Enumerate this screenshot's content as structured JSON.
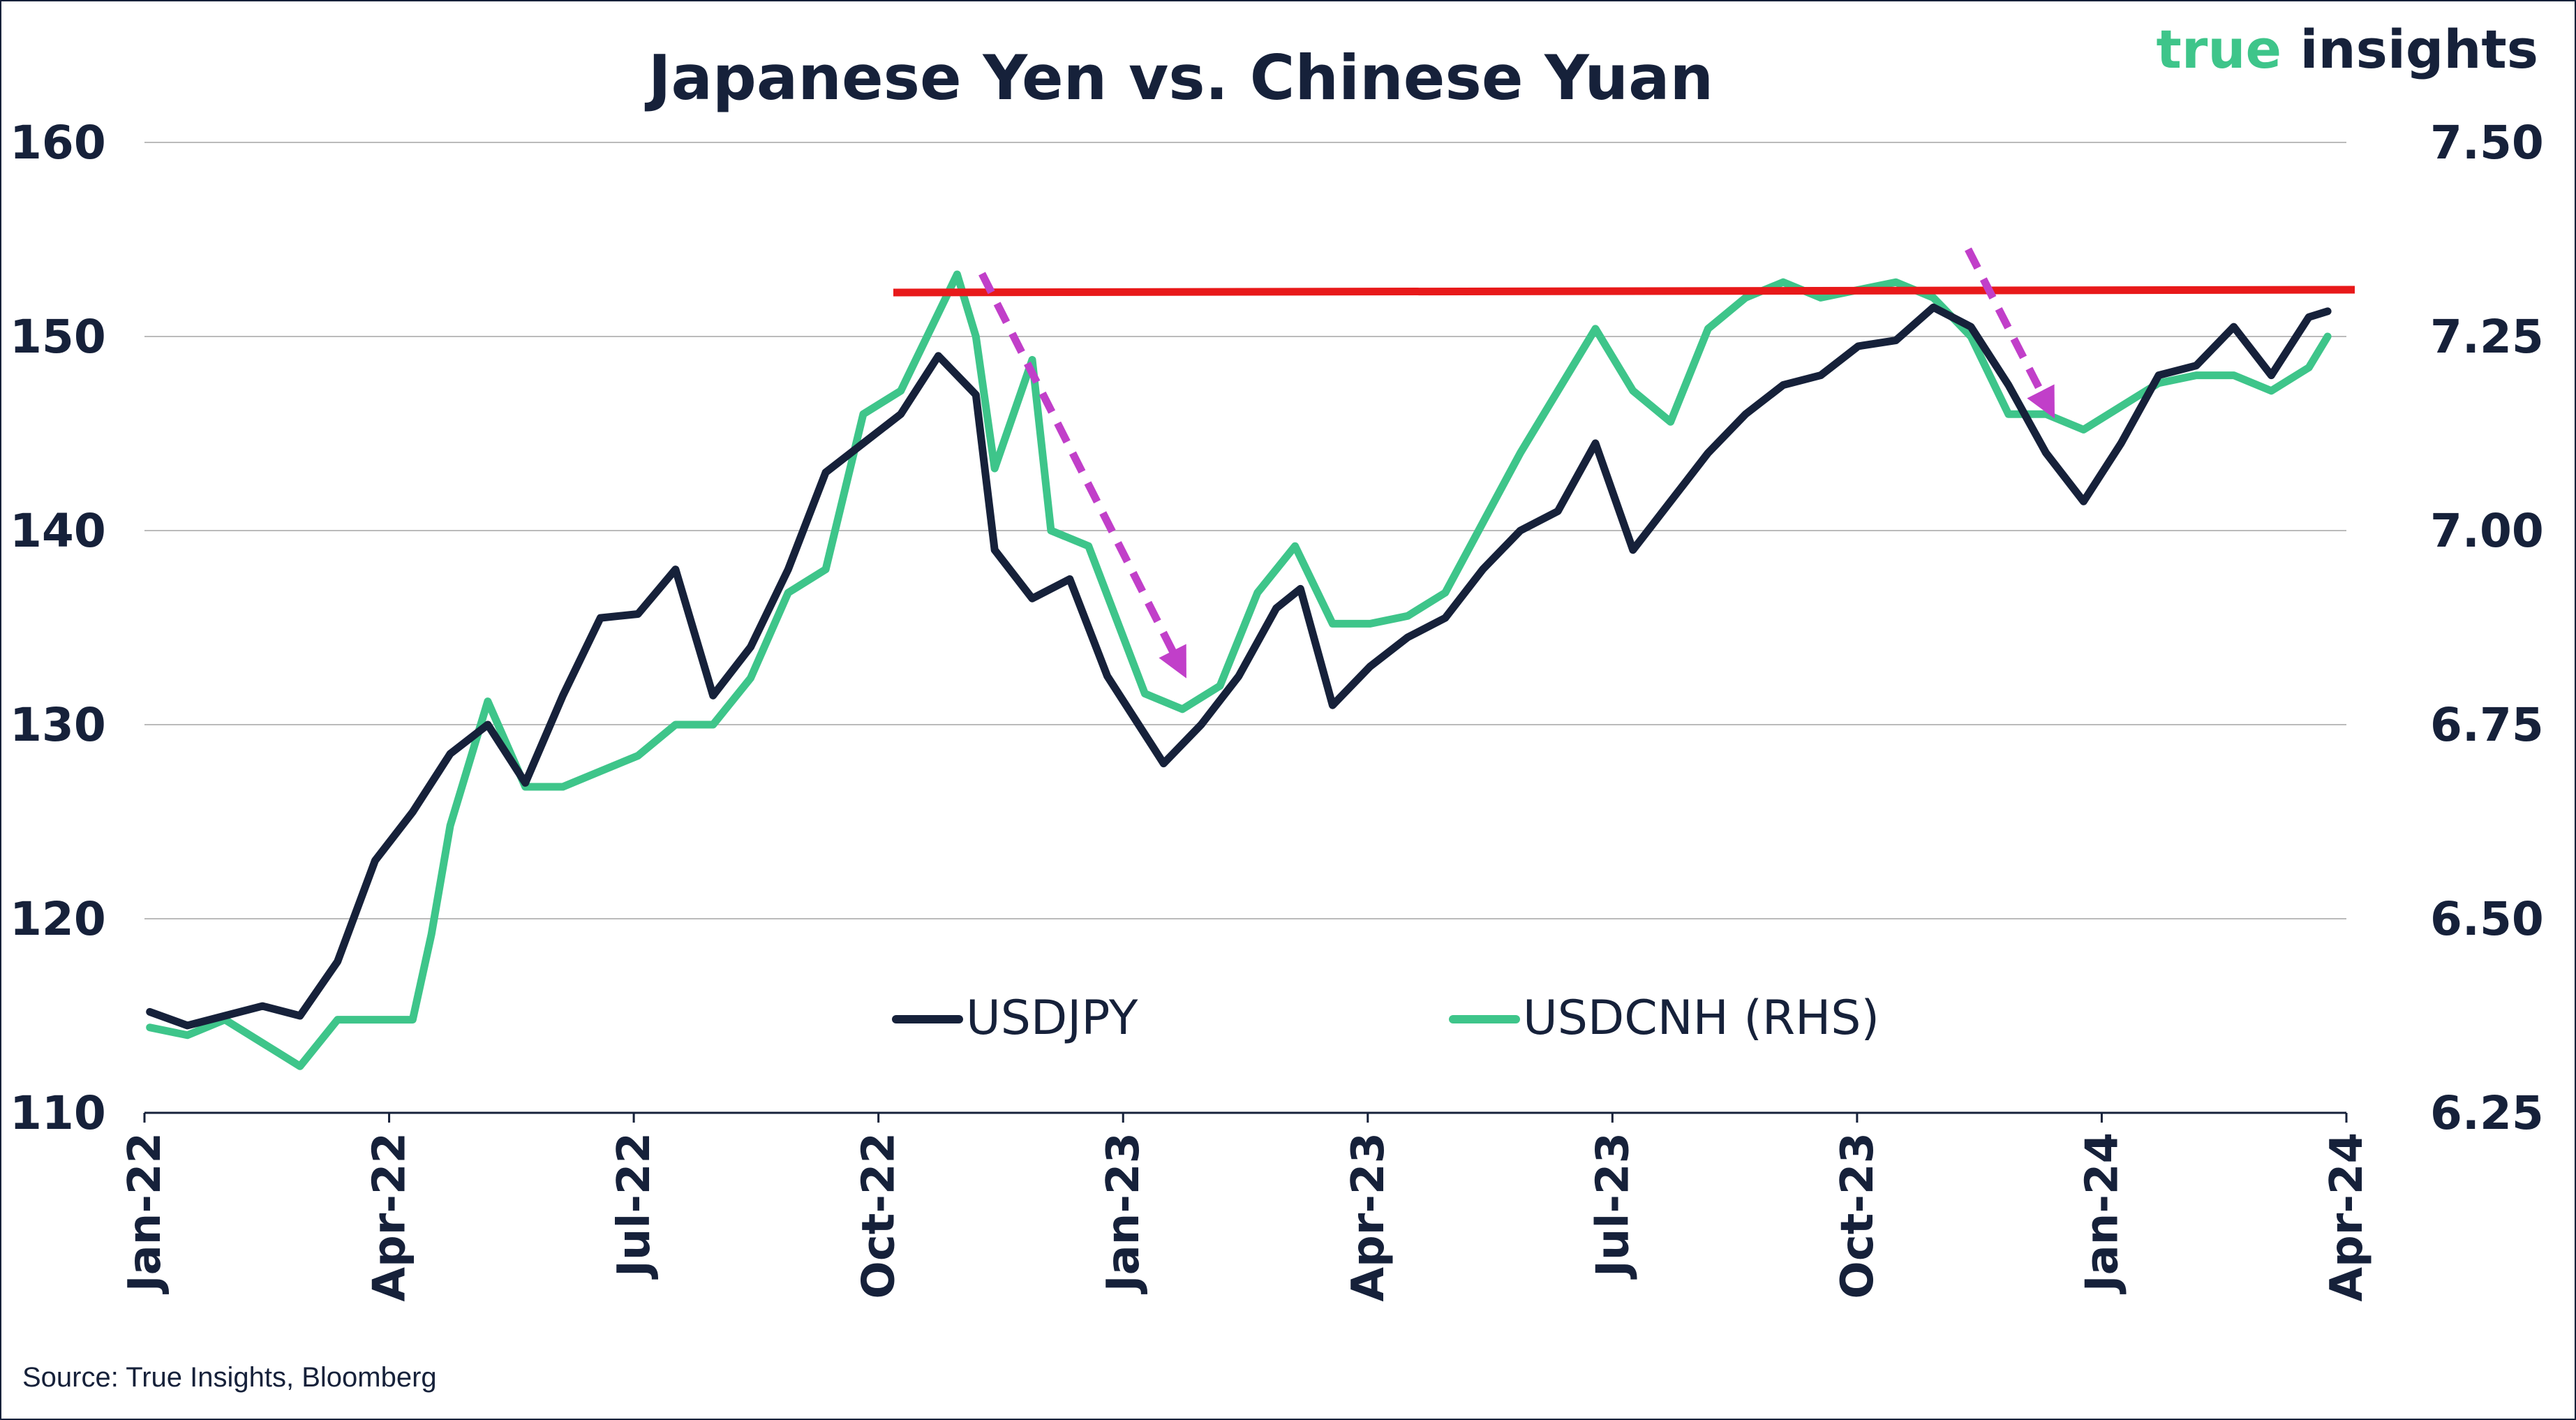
{
  "chart_data": {
    "type": "line",
    "title": "Japanese Yen vs. Chinese Yuan",
    "x_ticks": [
      "Jan-22",
      "Apr-22",
      "Jul-22",
      "Oct-22",
      "Jan-23",
      "Apr-23",
      "Jul-23",
      "Oct-23",
      "Jan-24",
      "Apr-24"
    ],
    "y_left": {
      "ticks": [
        "110",
        "120",
        "130",
        "140",
        "150",
        "160"
      ],
      "ylim": [
        110,
        160
      ]
    },
    "y_right": {
      "ticks": [
        "6.25",
        "6.50",
        "6.75",
        "7.00",
        "7.25",
        "7.50"
      ],
      "ylim": [
        6.25,
        7.5
      ]
    },
    "grid": true,
    "legend_position": "bottom-center",
    "series": [
      {
        "name": "USDJPY",
        "axis": "left",
        "color": "#16213a",
        "points": [
          [
            "2022-01-03",
            115.2
          ],
          [
            "2022-01-17",
            114.5
          ],
          [
            "2022-01-31",
            115.0
          ],
          [
            "2022-02-14",
            115.5
          ],
          [
            "2022-02-28",
            115.0
          ],
          [
            "2022-03-14",
            117.8
          ],
          [
            "2022-03-28",
            123.0
          ],
          [
            "2022-04-11",
            125.5
          ],
          [
            "2022-04-25",
            128.5
          ],
          [
            "2022-05-09",
            130.0
          ],
          [
            "2022-05-23",
            127.0
          ],
          [
            "2022-06-06",
            131.5
          ],
          [
            "2022-06-20",
            135.5
          ],
          [
            "2022-07-04",
            135.7
          ],
          [
            "2022-07-18",
            138.0
          ],
          [
            "2022-08-01",
            131.5
          ],
          [
            "2022-08-15",
            134.0
          ],
          [
            "2022-08-29",
            138.0
          ],
          [
            "2022-09-12",
            143.0
          ],
          [
            "2022-09-26",
            144.5
          ],
          [
            "2022-10-10",
            146.0
          ],
          [
            "2022-10-24",
            149.0
          ],
          [
            "2022-11-07",
            147.0
          ],
          [
            "2022-11-14",
            139.0
          ],
          [
            "2022-11-28",
            136.5
          ],
          [
            "2022-12-12",
            137.5
          ],
          [
            "2022-12-26",
            132.5
          ],
          [
            "2023-01-09",
            129.5
          ],
          [
            "2023-01-16",
            128.0
          ],
          [
            "2023-01-30",
            130.0
          ],
          [
            "2023-02-13",
            132.5
          ],
          [
            "2023-02-27",
            136.0
          ],
          [
            "2023-03-08",
            137.0
          ],
          [
            "2023-03-20",
            131.0
          ],
          [
            "2023-04-03",
            133.0
          ],
          [
            "2023-04-17",
            134.5
          ],
          [
            "2023-05-01",
            135.5
          ],
          [
            "2023-05-15",
            138.0
          ],
          [
            "2023-05-29",
            140.0
          ],
          [
            "2023-06-12",
            141.0
          ],
          [
            "2023-06-26",
            144.5
          ],
          [
            "2023-07-10",
            139.0
          ],
          [
            "2023-07-24",
            141.5
          ],
          [
            "2023-08-07",
            144.0
          ],
          [
            "2023-08-21",
            146.0
          ],
          [
            "2023-09-04",
            147.5
          ],
          [
            "2023-09-18",
            148.0
          ],
          [
            "2023-10-02",
            149.5
          ],
          [
            "2023-10-16",
            149.8
          ],
          [
            "2023-10-30",
            151.5
          ],
          [
            "2023-11-13",
            150.5
          ],
          [
            "2023-11-27",
            147.5
          ],
          [
            "2023-12-11",
            144.0
          ],
          [
            "2023-12-25",
            141.5
          ],
          [
            "2024-01-08",
            144.5
          ],
          [
            "2024-01-22",
            148.0
          ],
          [
            "2024-02-05",
            148.5
          ],
          [
            "2024-02-19",
            150.5
          ],
          [
            "2024-03-04",
            148.0
          ],
          [
            "2024-03-18",
            151.0
          ],
          [
            "2024-03-25",
            151.3
          ]
        ]
      },
      {
        "name": "USDCNH (RHS)",
        "axis": "right",
        "color": "#3ec58a",
        "points": [
          [
            "2022-01-03",
            6.36
          ],
          [
            "2022-01-17",
            6.35
          ],
          [
            "2022-01-31",
            6.37
          ],
          [
            "2022-02-14",
            6.34
          ],
          [
            "2022-02-28",
            6.31
          ],
          [
            "2022-03-14",
            6.37
          ],
          [
            "2022-03-28",
            6.37
          ],
          [
            "2022-04-11",
            6.37
          ],
          [
            "2022-04-18",
            6.48
          ],
          [
            "2022-04-25",
            6.62
          ],
          [
            "2022-05-09",
            6.78
          ],
          [
            "2022-05-23",
            6.67
          ],
          [
            "2022-06-06",
            6.67
          ],
          [
            "2022-06-20",
            6.69
          ],
          [
            "2022-07-04",
            6.71
          ],
          [
            "2022-07-18",
            6.75
          ],
          [
            "2022-08-01",
            6.75
          ],
          [
            "2022-08-15",
            6.81
          ],
          [
            "2022-08-29",
            6.92
          ],
          [
            "2022-09-12",
            6.95
          ],
          [
            "2022-09-26",
            7.15
          ],
          [
            "2022-10-10",
            7.18
          ],
          [
            "2022-10-24",
            7.28
          ],
          [
            "2022-10-31",
            7.33
          ],
          [
            "2022-11-07",
            7.25
          ],
          [
            "2022-11-14",
            7.08
          ],
          [
            "2022-11-28",
            7.22
          ],
          [
            "2022-12-05",
            7.0
          ],
          [
            "2022-12-19",
            6.98
          ],
          [
            "2023-01-09",
            6.79
          ],
          [
            "2023-01-23",
            6.77
          ],
          [
            "2023-02-06",
            6.8
          ],
          [
            "2023-02-20",
            6.92
          ],
          [
            "2023-03-06",
            6.98
          ],
          [
            "2023-03-20",
            6.88
          ],
          [
            "2023-04-03",
            6.88
          ],
          [
            "2023-04-17",
            6.89
          ],
          [
            "2023-05-01",
            6.92
          ],
          [
            "2023-05-15",
            7.01
          ],
          [
            "2023-05-29",
            7.1
          ],
          [
            "2023-06-12",
            7.18
          ],
          [
            "2023-06-26",
            7.26
          ],
          [
            "2023-07-10",
            7.18
          ],
          [
            "2023-07-24",
            7.14
          ],
          [
            "2023-08-07",
            7.26
          ],
          [
            "2023-08-21",
            7.3
          ],
          [
            "2023-09-04",
            7.32
          ],
          [
            "2023-09-18",
            7.3
          ],
          [
            "2023-10-02",
            7.31
          ],
          [
            "2023-10-16",
            7.32
          ],
          [
            "2023-10-30",
            7.3
          ],
          [
            "2023-11-13",
            7.25
          ],
          [
            "2023-11-27",
            7.15
          ],
          [
            "2023-12-11",
            7.15
          ],
          [
            "2023-12-25",
            7.13
          ],
          [
            "2024-01-08",
            7.16
          ],
          [
            "2024-01-22",
            7.19
          ],
          [
            "2024-02-05",
            7.2
          ],
          [
            "2024-02-19",
            7.2
          ],
          [
            "2024-03-04",
            7.18
          ],
          [
            "2024-03-18",
            7.21
          ],
          [
            "2024-03-25",
            7.25
          ]
        ]
      }
    ]
  },
  "legend": [
    {
      "label": "USDJPY",
      "color": "#16213a"
    },
    {
      "label": "USDCNH (RHS)",
      "color": "#3ec58a"
    }
  ],
  "source_note": "Source: True Insights, Bloomberg",
  "logo": {
    "part1": "true",
    "part2": "insights",
    "color1": "#3ec58a",
    "color2": "#16213a"
  },
  "colors": {
    "text": "#16213a",
    "grid": "#bbbbbb",
    "resistance_line": "#e8191a",
    "arrow": "#c13fc9"
  }
}
